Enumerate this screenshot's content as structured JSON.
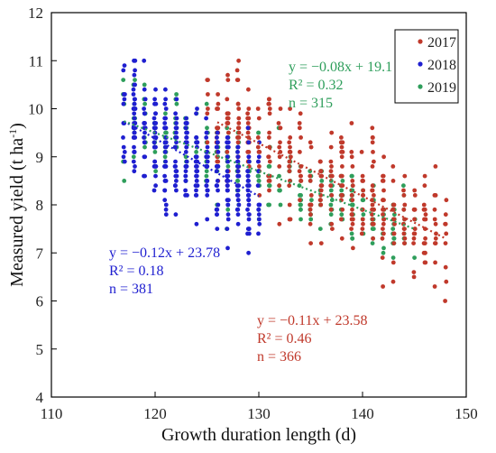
{
  "chart_data": {
    "type": "scatter",
    "xlabel": "Growth duration length (d)",
    "ylabel_main": "Measured yield (t ha",
    "ylabel_sup": "-1",
    "ylabel_close": ")",
    "xlim": [
      110,
      150
    ],
    "ylim": [
      4,
      12
    ],
    "xticks": [
      110,
      120,
      130,
      140,
      150
    ],
    "yticks": [
      4,
      5,
      6,
      7,
      8,
      9,
      10,
      11,
      12
    ],
    "grid": false,
    "legend_position": "top-right",
    "series": [
      {
        "name": "2017",
        "color": "#c0392b",
        "n": 366,
        "x_range": [
          125,
          148
        ],
        "trend": {
          "slope": -0.11,
          "intercept": 23.58,
          "x": [
            126,
            148
          ]
        },
        "annotation": {
          "eq": "y = −0.11x + 23.58",
          "r2": "R² = 0.46",
          "n": "n = 366",
          "color": "#c0392b"
        }
      },
      {
        "name": "2018",
        "color": "#1f1fd0",
        "n": 381,
        "x_range": [
          117,
          130
        ],
        "trend": {
          "slope": -0.12,
          "intercept": 23.78,
          "x": [
            117,
            130
          ]
        },
        "annotation": {
          "eq": "y = −0.12x + 23.78",
          "r2": "R² = 0.18",
          "n": "n = 381",
          "color": "#1f1fd0"
        }
      },
      {
        "name": "2019",
        "color": "#2e9e5b",
        "n": 315,
        "x_range": [
          117,
          145
        ],
        "trend": {
          "slope": -0.08,
          "intercept": 19.1,
          "x": [
            117,
            145
          ]
        },
        "annotation": {
          "eq": "y = −0.08x + 19.1",
          "r2": "R² = 0.32",
          "n": "n = 315",
          "color": "#2e9e5b"
        }
      }
    ]
  }
}
